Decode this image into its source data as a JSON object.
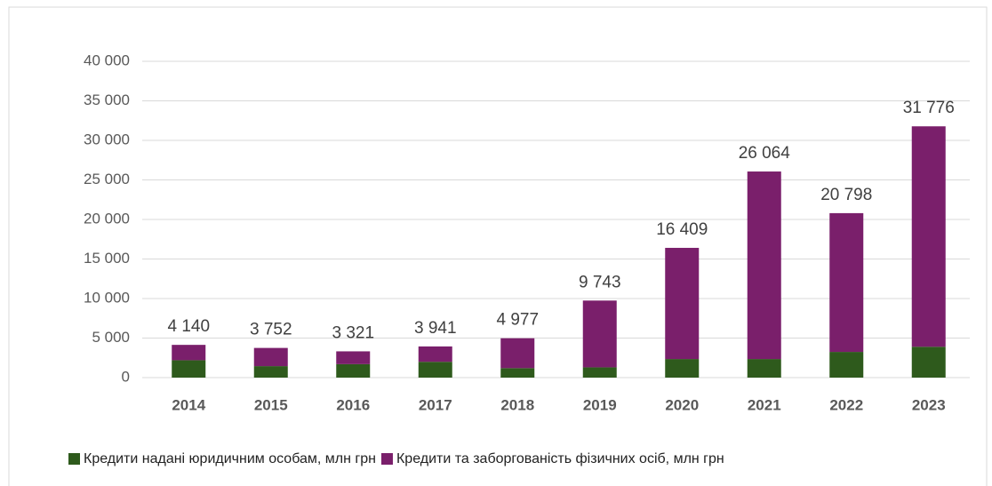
{
  "chart_data": {
    "type": "stacked_bar",
    "categories": [
      "2014",
      "2015",
      "2016",
      "2017",
      "2018",
      "2019",
      "2020",
      "2021",
      "2022",
      "2023"
    ],
    "series": [
      {
        "name": "Кредити надані юридичним особам, млн грн",
        "color": "#2e5a1c",
        "values": [
          2200,
          1450,
          1700,
          2000,
          1200,
          1300,
          2350,
          2350,
          3250,
          3900
        ]
      },
      {
        "name": "Кредити та заборгованість фізичних осіб, млн грн",
        "color": "#7a1f6b",
        "values": [
          1940,
          2302,
          1621,
          1941,
          3777,
          8443,
          14059,
          23714,
          17548,
          27876
        ]
      }
    ],
    "totals": [
      4140,
      3752,
      3321,
      3941,
      4977,
      9743,
      16409,
      26064,
      20798,
      31776
    ],
    "total_labels": [
      "4 140",
      "3 752",
      "3 321",
      "3 941",
      "4 977",
      "9 743",
      "16 409",
      "26 064",
      "20 798",
      "31 776"
    ],
    "ylim": [
      0,
      40000
    ],
    "yticks": [
      0,
      {
        "value": 5000,
        "label": "5 000"
      },
      {
        "value": 10000,
        "label": "10 000"
      },
      {
        "value": 15000,
        "label": "15 000"
      },
      {
        "value": 20000,
        "label": "20 000"
      },
      {
        "value": 25000,
        "label": "25 000"
      },
      {
        "value": 30000,
        "label": "30 000"
      },
      {
        "value": 35000,
        "label": "35 000"
      },
      {
        "value": 40000,
        "label": "40 000"
      }
    ],
    "grid": true,
    "legend": "bottom"
  }
}
